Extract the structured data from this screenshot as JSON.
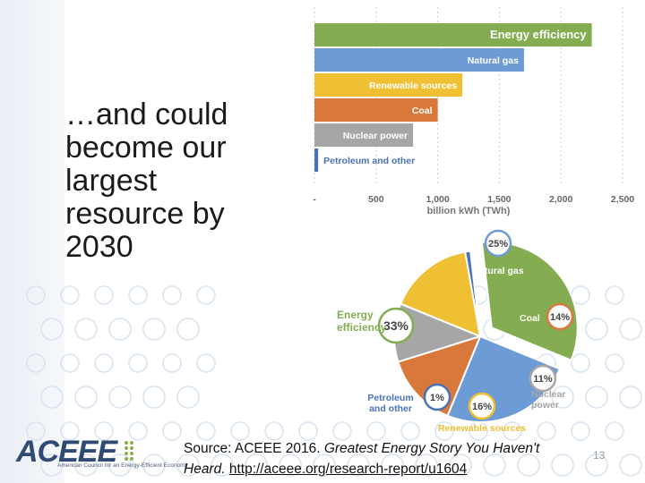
{
  "slide": {
    "title_lines": [
      "…and could",
      "become our",
      "largest",
      "resource by",
      "2030"
    ],
    "source_prefix": "Source: ACEEE 2016. ",
    "source_italic": "Greatest Energy Story You Haven't Heard.",
    "source_link": "http://aceee.org/research-report/u1604",
    "slide_number": "13",
    "logo": {
      "wordmark": "ACEEE",
      "tagline": "American Council for an Energy-Efficient Economy"
    }
  },
  "chart_data": [
    {
      "type": "bar",
      "orientation": "horizontal",
      "categories": [
        "Energy efficiency",
        "Natural gas",
        "Renewable sources",
        "Coal",
        "Nuclear power",
        "Petroleum and other"
      ],
      "values": [
        2250,
        1700,
        1200,
        1000,
        800,
        30
      ],
      "colors": [
        "#84ad52",
        "#6d9bd6",
        "#efc033",
        "#d8783a",
        "#a6a6a6",
        "#4a72b8"
      ],
      "xlabel": "billion kWh (TWh)",
      "x_ticks": [
        "-",
        "500",
        "1,000",
        "1,500",
        "2,000",
        "2,500"
      ],
      "xlim": [
        0,
        2500
      ],
      "grid": "vertical dashed"
    },
    {
      "type": "pie",
      "labels": [
        "Energy efficiency",
        "Natural gas",
        "Coal",
        "Nuclear power",
        "Renewable sources",
        "Petroleum and other"
      ],
      "values": [
        33,
        25,
        14,
        11,
        16,
        1
      ],
      "value_labels": [
        "33%",
        "25%",
        "14%",
        "11%",
        "16%",
        "1%"
      ],
      "colors": [
        "#84ad52",
        "#6d9bd6",
        "#d8783a",
        "#a6a6a6",
        "#efc033",
        "#4a72b8"
      ]
    }
  ]
}
